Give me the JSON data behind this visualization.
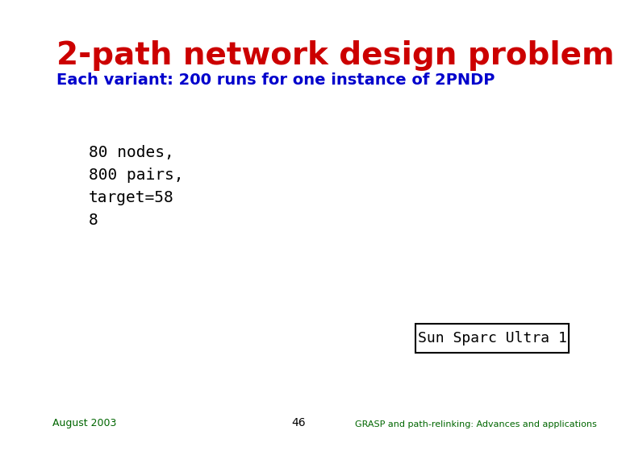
{
  "title": "2-path network design problem",
  "title_color": "#cc0000",
  "subtitle": "Each variant: 200 runs for one instance of 2PNDP",
  "subtitle_color": "#0000cc",
  "body_lines": [
    "80 nodes,",
    "800 pairs,",
    "target=58",
    "8"
  ],
  "body_color": "#000000",
  "box_text": "Sun Sparc Ultra 1",
  "footer_left": "August 2003",
  "footer_center": "46",
  "footer_right": "GRASP and path-relinking: Advances and applications",
  "footer_color": "#006600",
  "footer_center_color": "#000000",
  "background_color": "#ffffff"
}
